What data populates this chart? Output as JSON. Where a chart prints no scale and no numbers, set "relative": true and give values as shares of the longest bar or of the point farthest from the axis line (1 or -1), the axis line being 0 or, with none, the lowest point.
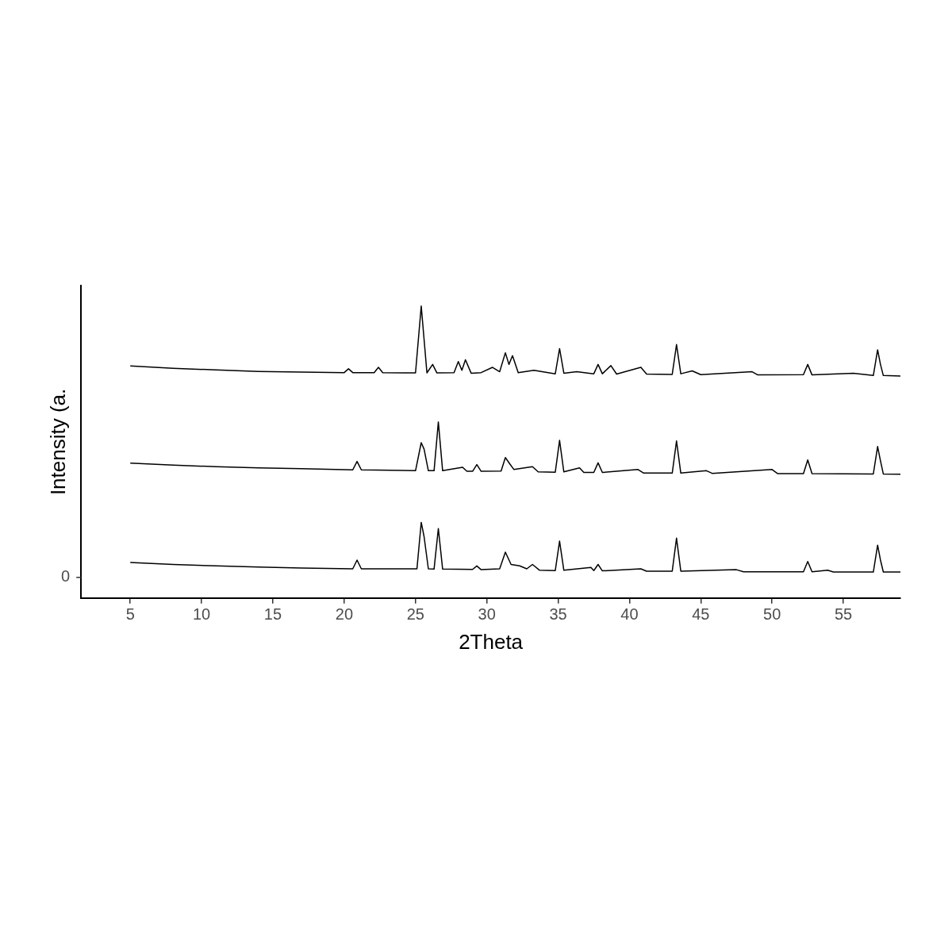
{
  "chart_data": {
    "type": "line",
    "xlabel": "2Theta",
    "ylabel": "Intensity (a.",
    "relative": true,
    "xlim": [
      1.55,
      59
    ],
    "xticks": [
      5,
      10,
      15,
      20,
      25,
      30,
      35,
      40,
      45,
      50,
      55
    ],
    "grid": false,
    "legend": false,
    "marker": "none",
    "annotations": [
      "0"
    ],
    "series": [
      {
        "color": "#000000",
        "x": [
          5,
          8,
          11,
          14,
          17,
          20.0,
          20.3,
          20.6,
          22.1,
          22.4,
          22.7,
          25.0,
          25.4,
          25.8,
          26.2,
          26.5,
          27.7,
          28.0,
          28.25,
          28.5,
          28.9,
          29.6,
          30.4,
          30.9,
          31.3,
          31.55,
          31.8,
          32.2,
          33.3,
          34.8,
          35.1,
          35.4,
          36.3,
          37.5,
          37.8,
          38.1,
          38.7,
          39.1,
          40.8,
          41.2,
          43.0,
          43.3,
          43.6,
          44.4,
          45.0,
          48.6,
          49.0,
          52.2,
          52.5,
          52.8,
          55.7,
          57.1,
          57.4,
          57.6,
          57.8,
          59
        ],
        "values": [
          0.795,
          0.787,
          0.781,
          0.776,
          0.774,
          0.772,
          0.785,
          0.772,
          0.772,
          0.79,
          0.772,
          0.771,
          1.0,
          0.771,
          0.8,
          0.771,
          0.772,
          0.81,
          0.78,
          0.816,
          0.77,
          0.772,
          0.79,
          0.775,
          0.84,
          0.8,
          0.83,
          0.772,
          0.78,
          0.768,
          0.854,
          0.77,
          0.775,
          0.768,
          0.8,
          0.768,
          0.796,
          0.767,
          0.79,
          0.767,
          0.766,
          0.868,
          0.768,
          0.778,
          0.765,
          0.775,
          0.764,
          0.765,
          0.8,
          0.764,
          0.77,
          0.762,
          0.85,
          0.8,
          0.762,
          0.76
        ]
      },
      {
        "color": "#000000",
        "x": [
          5,
          8,
          11,
          14,
          17,
          20.6,
          20.9,
          21.2,
          25.0,
          25.4,
          25.6,
          25.9,
          26.3,
          26.6,
          26.9,
          28.3,
          28.6,
          29.0,
          29.3,
          29.6,
          31.0,
          31.3,
          31.6,
          31.9,
          33.2,
          33.6,
          34.8,
          35.1,
          35.4,
          36.5,
          36.8,
          37.5,
          37.8,
          38.1,
          40.6,
          41,
          43.0,
          43.3,
          43.6,
          45.4,
          45.8,
          50.0,
          50.4,
          52.2,
          52.5,
          52.8,
          57.1,
          57.4,
          57.6,
          57.8,
          59
        ],
        "values": [
          0.462,
          0.455,
          0.45,
          0.446,
          0.443,
          0.439,
          0.468,
          0.439,
          0.436,
          0.532,
          0.51,
          0.436,
          0.436,
          0.603,
          0.436,
          0.448,
          0.434,
          0.434,
          0.457,
          0.434,
          0.435,
          0.481,
          0.46,
          0.44,
          0.45,
          0.432,
          0.431,
          0.54,
          0.432,
          0.446,
          0.43,
          0.43,
          0.463,
          0.43,
          0.44,
          0.428,
          0.428,
          0.538,
          0.428,
          0.436,
          0.427,
          0.44,
          0.426,
          0.426,
          0.473,
          0.426,
          0.425,
          0.519,
          0.47,
          0.425,
          0.424
        ]
      },
      {
        "color": "#000000",
        "x": [
          5,
          8,
          11,
          14,
          17,
          20.6,
          20.9,
          21.2,
          24,
          25.1,
          25.4,
          25.6,
          25.9,
          26.3,
          26.6,
          26.9,
          29.0,
          29.3,
          29.6,
          30.9,
          31.3,
          31.7,
          32.3,
          32.8,
          33.2,
          33.7,
          34.8,
          35.1,
          35.4,
          37.3,
          37.5,
          37.8,
          38.1,
          40.8,
          41.2,
          43.0,
          43.3,
          43.6,
          47.5,
          48,
          52.2,
          52.5,
          52.8,
          53.9,
          54.3,
          57.1,
          57.4,
          57.6,
          57.8,
          59
        ],
        "values": [
          0.122,
          0.115,
          0.11,
          0.106,
          0.103,
          0.1,
          0.13,
          0.1,
          0.1,
          0.1,
          0.259,
          0.21,
          0.1,
          0.099,
          0.238,
          0.099,
          0.098,
          0.11,
          0.097,
          0.1,
          0.157,
          0.115,
          0.11,
          0.1,
          0.115,
          0.095,
          0.094,
          0.195,
          0.095,
          0.105,
          0.094,
          0.115,
          0.093,
          0.1,
          0.092,
          0.092,
          0.205,
          0.092,
          0.097,
          0.09,
          0.09,
          0.125,
          0.09,
          0.095,
          0.089,
          0.089,
          0.181,
          0.13,
          0.089,
          0.089
        ]
      }
    ]
  }
}
